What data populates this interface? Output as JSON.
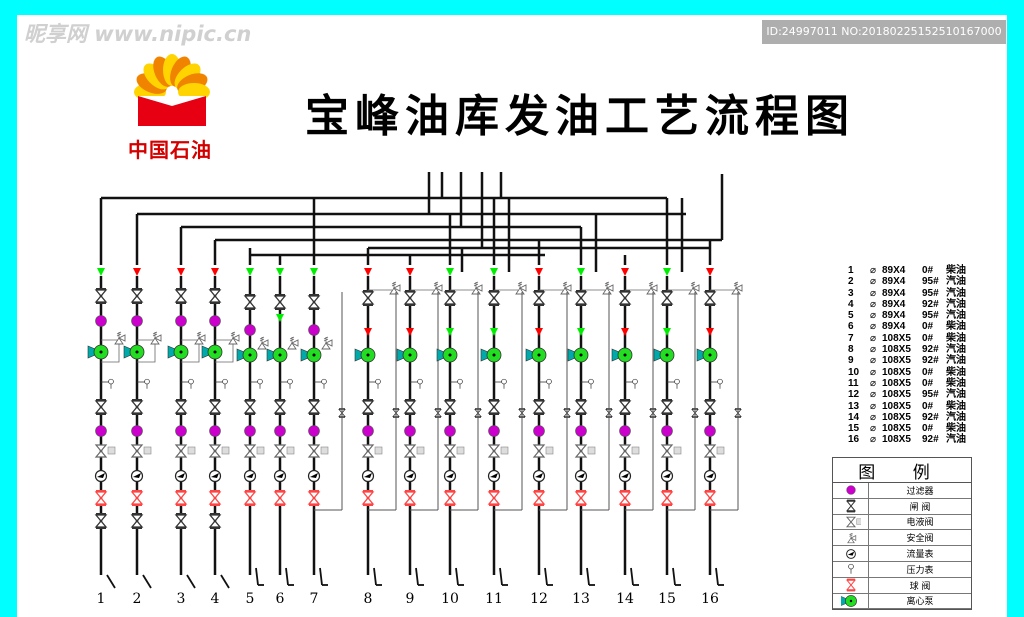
{
  "title": "宝峰油库发油工艺流程图",
  "logo": {
    "text": "中国石油",
    "colors": {
      "red": "#e60012",
      "orange": "#f08300",
      "yellow": "#ffd400"
    }
  },
  "columns": [
    {
      "label": "1",
      "arrow": "green"
    },
    {
      "label": "2",
      "arrow": "red"
    },
    {
      "label": "3",
      "arrow": "red"
    },
    {
      "label": "4",
      "arrow": "red"
    },
    {
      "label": "5",
      "arrow": "green"
    },
    {
      "label": "6",
      "arrow": "green"
    },
    {
      "label": "7",
      "arrow": "green"
    },
    {
      "label": "8",
      "arrow": "red"
    },
    {
      "label": "9",
      "arrow": "red"
    },
    {
      "label": "10",
      "arrow": "green"
    },
    {
      "label": "11",
      "arrow": "green"
    },
    {
      "label": "12",
      "arrow": "red"
    },
    {
      "label": "13",
      "arrow": "green"
    },
    {
      "label": "14",
      "arrow": "red"
    },
    {
      "label": "15",
      "arrow": "green"
    },
    {
      "label": "16",
      "arrow": "red"
    }
  ],
  "specs": [
    {
      "n": "1",
      "d": "⌀",
      "size": "89X4",
      "grade": "0#",
      "fuel": "柴油"
    },
    {
      "n": "2",
      "d": "⌀",
      "size": "89X4",
      "grade": "95#",
      "fuel": "汽油"
    },
    {
      "n": "3",
      "d": "⌀",
      "size": "89X4",
      "grade": "95#",
      "fuel": "汽油"
    },
    {
      "n": "4",
      "d": "⌀",
      "size": "89X4",
      "grade": "92#",
      "fuel": "汽油"
    },
    {
      "n": "5",
      "d": "⌀",
      "size": "89X4",
      "grade": "95#",
      "fuel": "汽油"
    },
    {
      "n": "6",
      "d": "⌀",
      "size": "89X4",
      "grade": "0#",
      "fuel": "柴油"
    },
    {
      "n": "7",
      "d": "⌀",
      "size": "108X5",
      "grade": "0#",
      "fuel": "柴油"
    },
    {
      "n": "8",
      "d": "⌀",
      "size": "108X5",
      "grade": "92#",
      "fuel": "汽油"
    },
    {
      "n": "9",
      "d": "⌀",
      "size": "108X5",
      "grade": "92#",
      "fuel": "汽油"
    },
    {
      "n": "10",
      "d": "⌀",
      "size": "108X5",
      "grade": "0#",
      "fuel": "柴油"
    },
    {
      "n": "11",
      "d": "⌀",
      "size": "108X5",
      "grade": "0#",
      "fuel": "柴油"
    },
    {
      "n": "12",
      "d": "⌀",
      "size": "108X5",
      "grade": "95#",
      "fuel": "汽油"
    },
    {
      "n": "13",
      "d": "⌀",
      "size": "108X5",
      "grade": "0#",
      "fuel": "柴油"
    },
    {
      "n": "14",
      "d": "⌀",
      "size": "108X5",
      "grade": "92#",
      "fuel": "汽油"
    },
    {
      "n": "15",
      "d": "⌀",
      "size": "108X5",
      "grade": "0#",
      "fuel": "柴油"
    },
    {
      "n": "16",
      "d": "⌀",
      "size": "108X5",
      "grade": "92#",
      "fuel": "汽油"
    }
  ],
  "legend": {
    "title": "图 例",
    "items": [
      {
        "icon": "filter",
        "label": "过滤器"
      },
      {
        "icon": "gate-valve",
        "label": "闸 阀"
      },
      {
        "icon": "electro-hydraulic-valve",
        "label": "电液阀"
      },
      {
        "icon": "safety-valve",
        "label": "安全阀"
      },
      {
        "icon": "flow-meter",
        "label": "流量表"
      },
      {
        "icon": "pressure-gauge",
        "label": "压力表"
      },
      {
        "icon": "ball-valve",
        "label": "球 阀"
      },
      {
        "icon": "centrifugal-pump",
        "label": "离心泵"
      }
    ]
  },
  "colors": {
    "green": "#00ee00",
    "red": "#ff0000",
    "filter": "#cc00cc",
    "pump": "#22dd22",
    "pump_motor": "#00aaaa",
    "border": "#00ffff"
  },
  "watermark": {
    "left": "昵享网 www.nipic.cn",
    "right": "ID:24997011 NO:20180225152510167000"
  }
}
